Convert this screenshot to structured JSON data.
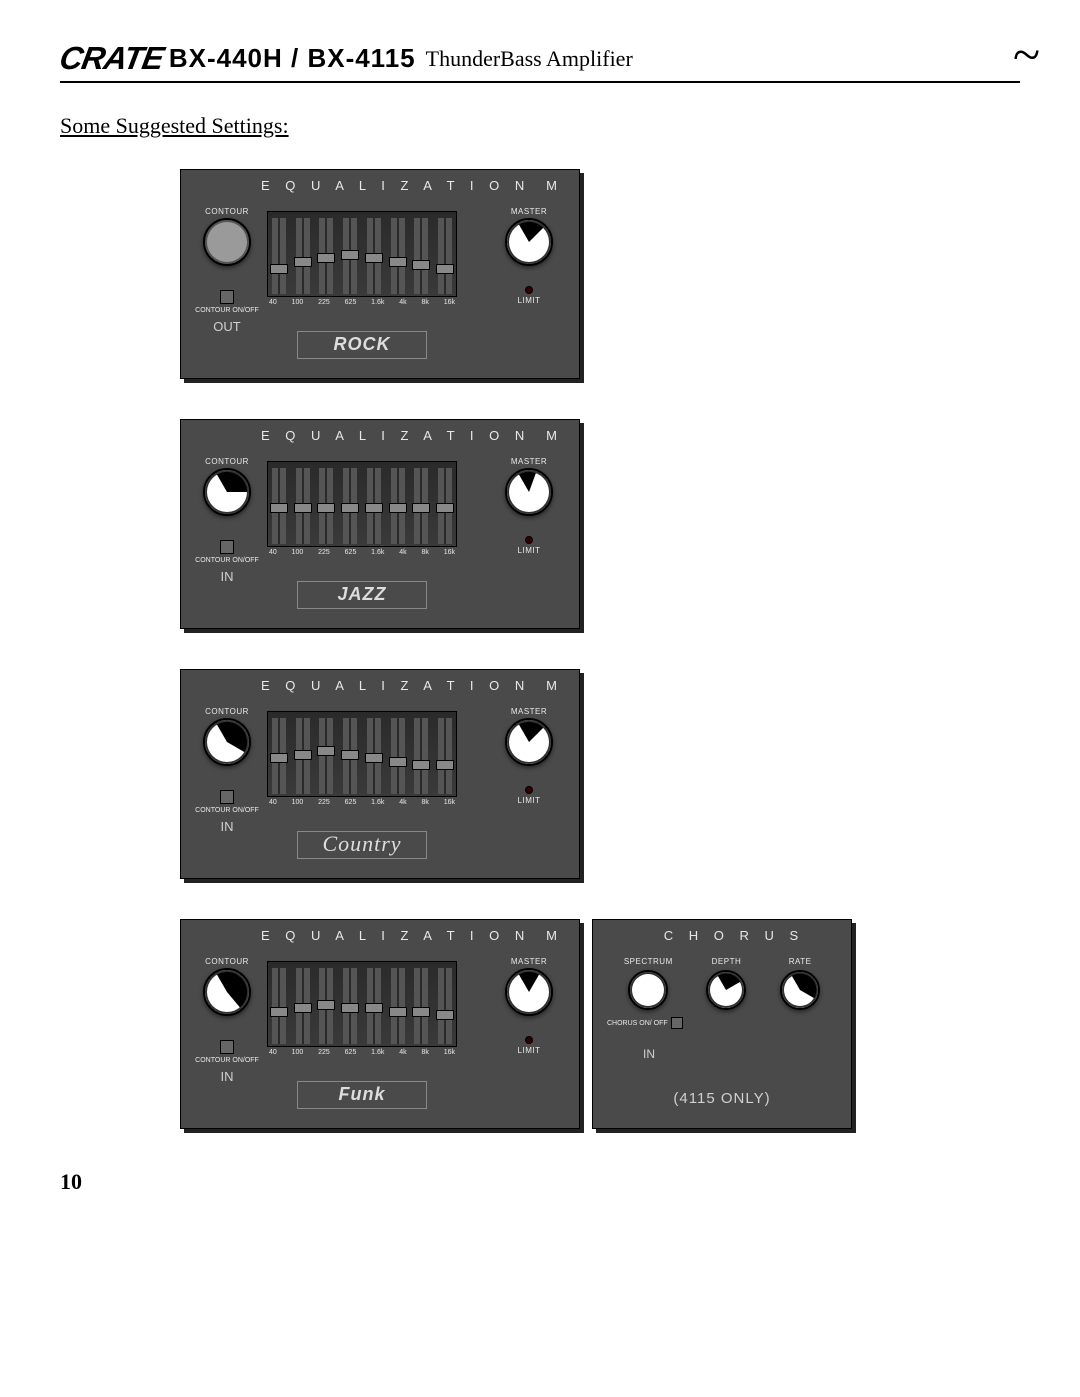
{
  "header": {
    "logo": "CRATE",
    "model": "BX-440H / BX-4115",
    "subtitle": "ThunderBass Amplifier"
  },
  "section_title": "Some Suggested Settings:",
  "labels": {
    "eq_header": "E Q U A L I Z A T I O N",
    "m_header": "M",
    "contour": "CONTOUR",
    "contour_onoff": "CONTOUR ON/OFF",
    "master": "MASTER",
    "limit": "LIMIT",
    "out": "OUT",
    "in": "IN",
    "chorus_header": "C  H  O  R  U  S",
    "spectrum": "SPECTRUM",
    "depth": "DEPTH",
    "rate": "RATE",
    "chorus_onoff": "CHORUS ON/ OFF",
    "only_4115": "(4115 ONLY)"
  },
  "eq_freqs": [
    "40",
    "100",
    "225",
    "625",
    "1.6k",
    "4k",
    "8k",
    "16k"
  ],
  "panels": [
    {
      "genre": "ROCK",
      "genre_style": "block",
      "contour_knob_grey": true,
      "contour_angle": null,
      "master_angle": 45,
      "io": "OUT",
      "sliders": [
        0.35,
        0.45,
        0.5,
        0.55,
        0.5,
        0.45,
        0.4,
        0.35
      ]
    },
    {
      "genre": "JAZZ",
      "genre_style": "italic",
      "contour_knob_grey": false,
      "contour_angle": 90,
      "master_angle": 20,
      "io": "IN",
      "sliders": [
        0.5,
        0.5,
        0.5,
        0.5,
        0.5,
        0.5,
        0.5,
        0.5
      ]
    },
    {
      "genre": "Country",
      "genre_style": "script",
      "contour_knob_grey": false,
      "contour_angle": 120,
      "master_angle": 45,
      "io": "IN",
      "sliders": [
        0.5,
        0.55,
        0.6,
        0.55,
        0.5,
        0.45,
        0.4,
        0.4
      ]
    },
    {
      "genre": "Funk",
      "genre_style": "block",
      "contour_knob_grey": false,
      "contour_angle": 140,
      "master_angle": 30,
      "io": "IN",
      "sliders": [
        0.45,
        0.5,
        0.55,
        0.5,
        0.5,
        0.45,
        0.45,
        0.4
      ],
      "has_chorus": true,
      "chorus": {
        "spectrum_angle": -30,
        "depth_angle": 60,
        "rate_angle": 120,
        "io": "IN"
      }
    }
  ],
  "page_number": "10",
  "colors": {
    "panel_bg": "#4a4a4a",
    "panel_shadow": "#222222",
    "text_light": "#e8e8e8",
    "knob_white": "#ffffff",
    "knob_grey": "#9a9a9a",
    "slider_handle": "#888888"
  }
}
